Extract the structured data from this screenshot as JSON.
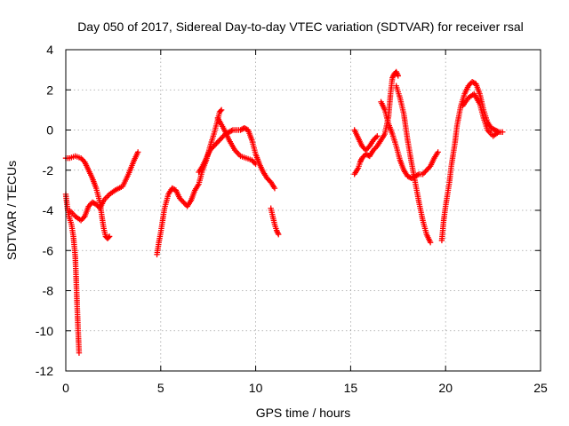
{
  "chart_data": {
    "type": "scatter",
    "title": "Day 050 of 2017, Sidereal Day-to-day VTEC variation (SDTVAR) for receiver rsal",
    "xlabel": "GPS time / hours",
    "ylabel": "SDTVAR / TECUs",
    "xlim": [
      0,
      25
    ],
    "ylim": [
      -12,
      4
    ],
    "xticks": [
      0,
      5,
      10,
      15,
      20,
      25
    ],
    "yticks": [
      -12,
      -10,
      -8,
      -6,
      -4,
      -2,
      0,
      2,
      4
    ],
    "grid": true,
    "marker": "+",
    "series": [
      {
        "name": "SDTVAR",
        "color": "#ff0000",
        "segments": [
          {
            "x": [
              0.0,
              0.2,
              0.5,
              0.8,
              1.0,
              1.2,
              1.4,
              1.6,
              1.8,
              1.9,
              2.0,
              2.1,
              2.2,
              2.3
            ],
            "y": [
              -1.4,
              -1.4,
              -1.3,
              -1.4,
              -1.6,
              -2.0,
              -2.4,
              -2.9,
              -3.6,
              -4.3,
              -4.9,
              -5.3,
              -5.4,
              -5.3
            ]
          },
          {
            "x": [
              0.0,
              0.1,
              0.2,
              0.3,
              0.4,
              0.5,
              0.55,
              0.6,
              0.65,
              0.7
            ],
            "y": [
              -3.2,
              -4.0,
              -4.4,
              -4.7,
              -5.3,
              -6.3,
              -7.5,
              -8.8,
              -10.0,
              -11.1
            ]
          },
          {
            "x": [
              0.2,
              0.5,
              0.8,
              1.0,
              1.2,
              1.4,
              1.6,
              1.8,
              2.0,
              2.3,
              2.6,
              3.0,
              3.3,
              3.6,
              3.8
            ],
            "y": [
              -4.0,
              -4.3,
              -4.5,
              -4.3,
              -3.8,
              -3.6,
              -3.7,
              -3.9,
              -3.5,
              -3.2,
              -3.0,
              -2.8,
              -2.2,
              -1.5,
              -1.1
            ]
          },
          {
            "x": [
              4.8,
              4.9,
              5.0,
              5.1,
              5.2,
              5.4,
              5.6,
              5.8,
              6.0,
              6.2,
              6.4,
              6.6,
              6.8,
              7.0,
              7.2,
              7.4,
              7.6,
              7.8,
              8.0,
              8.1,
              8.2
            ],
            "y": [
              -6.2,
              -5.6,
              -5.1,
              -4.5,
              -3.9,
              -3.2,
              -2.9,
              -3.0,
              -3.4,
              -3.6,
              -3.8,
              -3.5,
              -3.0,
              -2.7,
              -2.0,
              -1.5,
              -0.8,
              -0.2,
              0.5,
              0.9,
              1.0
            ]
          },
          {
            "x": [
              7.0,
              7.2,
              7.4,
              7.6,
              7.8,
              8.0,
              8.2,
              8.4,
              8.6,
              8.8,
              9.0,
              9.2,
              9.4,
              9.6,
              9.8,
              10.0,
              10.2,
              10.4,
              10.6,
              10.8,
              11.0
            ],
            "y": [
              -2.1,
              -1.8,
              -1.4,
              -1.0,
              -0.8,
              -0.6,
              -0.4,
              -0.2,
              -0.1,
              0.0,
              0.0,
              0.0,
              0.1,
              0.0,
              -0.5,
              -1.2,
              -1.7,
              -2.1,
              -2.4,
              -2.6,
              -2.9
            ]
          },
          {
            "x": [
              8.0,
              8.3,
              8.6,
              8.9,
              9.2,
              9.5,
              9.8,
              10.0
            ],
            "y": [
              0.6,
              0.1,
              -0.5,
              -1.0,
              -1.3,
              -1.4,
              -1.5,
              -1.7
            ]
          },
          {
            "x": [
              10.8,
              10.9,
              11.0,
              11.1,
              11.2
            ],
            "y": [
              -3.9,
              -4.3,
              -4.7,
              -5.0,
              -5.2
            ]
          },
          {
            "x": [
              15.2,
              15.4,
              15.5,
              15.6,
              15.8,
              16.0,
              16.2,
              16.4,
              16.6,
              16.8,
              17.0,
              17.1,
              17.2,
              17.3,
              17.4,
              17.5
            ],
            "y": [
              -2.2,
              -1.9,
              -1.6,
              -1.4,
              -1.2,
              -1.3,
              -1.0,
              -0.8,
              -0.5,
              -0.2,
              0.7,
              1.8,
              2.6,
              2.8,
              2.9,
              2.7
            ]
          },
          {
            "x": [
              15.2,
              15.4,
              15.6,
              15.8,
              16.0,
              16.2,
              16.4
            ],
            "y": [
              0.0,
              -0.4,
              -0.8,
              -1.0,
              -0.8,
              -0.5,
              -0.3
            ]
          },
          {
            "x": [
              16.6,
              16.8,
              17.0,
              17.2,
              17.4,
              17.6,
              17.8,
              18.0,
              18.2,
              18.4,
              18.6,
              18.8,
              19.0,
              19.2,
              19.4,
              19.6
            ],
            "y": [
              1.4,
              1.0,
              0.3,
              -0.2,
              -0.8,
              -1.5,
              -2.0,
              -2.3,
              -2.4,
              -2.3,
              -2.2,
              -2.2,
              -2.0,
              -1.8,
              -1.4,
              -1.1
            ]
          },
          {
            "x": [
              17.4,
              17.6,
              17.8,
              18.0,
              18.2,
              18.4,
              18.6,
              18.8,
              19.0,
              19.2
            ],
            "y": [
              2.2,
              1.6,
              0.8,
              -0.5,
              -1.6,
              -2.6,
              -3.6,
              -4.5,
              -5.2,
              -5.6
            ]
          },
          {
            "x": [
              19.8,
              19.9,
              20.0,
              20.1,
              20.2,
              20.3,
              20.4,
              20.5,
              20.6,
              20.8,
              21.0,
              21.2,
              21.4,
              21.6,
              21.8,
              22.0,
              22.2,
              22.4,
              22.6,
              22.8,
              23.0
            ],
            "y": [
              -5.5,
              -4.5,
              -3.8,
              -3.2,
              -2.6,
              -1.8,
              -1.2,
              -0.6,
              0.2,
              1.2,
              1.8,
              2.2,
              2.4,
              2.3,
              1.8,
              1.0,
              0.4,
              0.1,
              0.0,
              -0.1,
              -0.1
            ]
          },
          {
            "x": [
              20.9,
              21.2,
              21.5,
              21.8,
              22.0,
              22.2,
              22.5,
              22.8
            ],
            "y": [
              1.2,
              1.6,
              1.8,
              1.3,
              0.6,
              0.0,
              -0.3,
              -0.1
            ]
          }
        ]
      }
    ]
  }
}
